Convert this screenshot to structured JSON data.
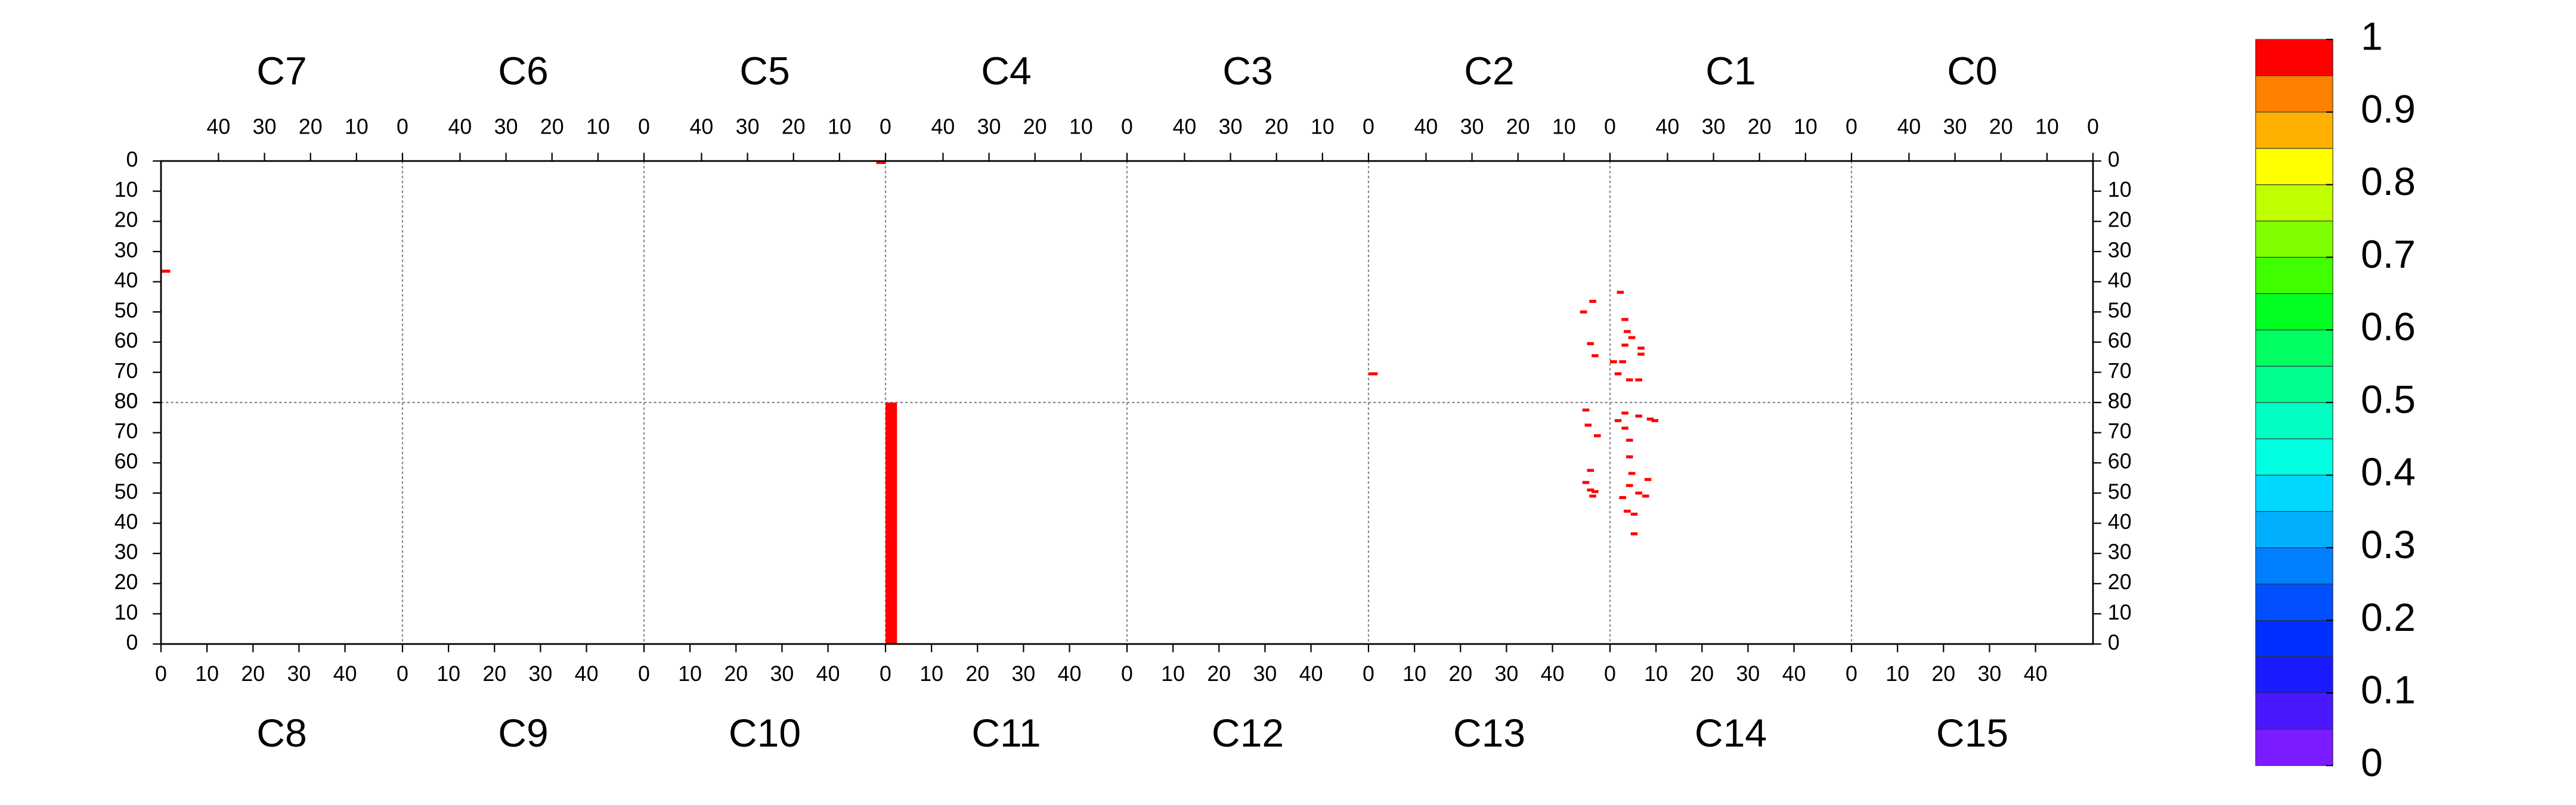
{
  "chart_data": {
    "type": "heatmap",
    "xlim": [
      0,
      52.5
    ],
    "ylim": [
      0,
      80
    ],
    "xticks": [
      0,
      10,
      20,
      30,
      40
    ],
    "yticks": [
      0,
      10,
      20,
      30,
      40,
      50,
      60,
      70,
      80
    ],
    "grid": true,
    "colorbar": {
      "lim": [
        0,
        1
      ],
      "ticks": [
        0,
        0.1,
        0.2,
        0.3,
        0.4,
        0.5,
        0.6,
        0.7,
        0.8,
        0.9,
        1
      ],
      "colors": [
        "#7a1cff",
        "#4a18ff",
        "#1a1aff",
        "#0030ff",
        "#0050ff",
        "#0080ff",
        "#00b0ff",
        "#00d8ff",
        "#00ffe0",
        "#00ffc0",
        "#00ff90",
        "#00ff60",
        "#00ff20",
        "#40ff00",
        "#80ff00",
        "#c0ff00",
        "#ffff00",
        "#ffb000",
        "#ff8000",
        "#ff0000"
      ]
    },
    "panels": [
      {
        "label": "C7",
        "row": "top",
        "hits": [
          {
            "x": [
              50.5,
              52.5
            ],
            "y": [
              36,
              37
            ],
            "value": 1
          }
        ]
      },
      {
        "label": "C6",
        "row": "top",
        "hits": []
      },
      {
        "label": "C5",
        "row": "top",
        "hits": [
          {
            "x": [
              0,
              2
            ],
            "y": [
              0,
              1
            ],
            "value": 1
          }
        ]
      },
      {
        "label": "C4",
        "row": "top",
        "hits": []
      },
      {
        "label": "C3",
        "row": "top",
        "hits": []
      },
      {
        "label": "C2",
        "row": "top",
        "hits": [
          {
            "x": [
              50.5,
              52.5
            ],
            "y": [
              70,
              71
            ],
            "value": 1
          },
          {
            "x": [
              3,
              4.5
            ],
            "y": [
              46,
              47
            ],
            "value": 1
          },
          {
            "x": [
              5,
              6.5
            ],
            "y": [
              49.5,
              50.5
            ],
            "value": 1
          },
          {
            "x": [
              3.5,
              5
            ],
            "y": [
              60,
              61
            ],
            "value": 1
          },
          {
            "x": [
              2.5,
              4
            ],
            "y": [
              64,
              65
            ],
            "value": 1
          }
        ]
      },
      {
        "label": "C1",
        "row": "top",
        "hits": [
          {
            "x": [
              49.5,
              51
            ],
            "y": [
              43,
              44
            ],
            "value": 1
          },
          {
            "x": [
              48.5,
              50
            ],
            "y": [
              52,
              53
            ],
            "value": 1
          },
          {
            "x": [
              48,
              49.5
            ],
            "y": [
              56,
              57
            ],
            "value": 1
          },
          {
            "x": [
              47,
              48.5
            ],
            "y": [
              58,
              59
            ],
            "value": 1
          },
          {
            "x": [
              48.5,
              50
            ],
            "y": [
              60.5,
              61.5
            ],
            "value": 1
          },
          {
            "x": [
              45,
              46.5
            ],
            "y": [
              61.5,
              62.5
            ],
            "value": 1
          },
          {
            "x": [
              49,
              50.5
            ],
            "y": [
              66,
              67
            ],
            "value": 1
          },
          {
            "x": [
              51,
              52.5
            ],
            "y": [
              66,
              67
            ],
            "value": 1
          },
          {
            "x": [
              50,
              51.5
            ],
            "y": [
              70,
              71
            ],
            "value": 1
          },
          {
            "x": [
              47.5,
              49
            ],
            "y": [
              72,
              73
            ],
            "value": 1
          },
          {
            "x": [
              45.5,
              47
            ],
            "y": [
              72,
              73
            ],
            "value": 1
          },
          {
            "x": [
              45,
              46.5
            ],
            "y": [
              63.5,
              64.5
            ],
            "value": 1
          }
        ]
      },
      {
        "label": "C0",
        "row": "top",
        "hits": []
      },
      {
        "label": "C8",
        "row": "bottom",
        "hits": []
      },
      {
        "label": "C9",
        "row": "bottom",
        "hits": []
      },
      {
        "label": "C10",
        "row": "bottom",
        "hits": []
      },
      {
        "label": "C11",
        "row": "bottom",
        "hits": [
          {
            "x": [
              0,
              2.5
            ],
            "y": [
              0,
              80
            ],
            "value": 1
          }
        ]
      },
      {
        "label": "C12",
        "row": "bottom",
        "hits": []
      },
      {
        "label": "C13",
        "row": "bottom",
        "hits": [
          {
            "x": [
              46.5,
              48
            ],
            "y": [
              77,
              78
            ],
            "value": 1
          },
          {
            "x": [
              47,
              48.5
            ],
            "y": [
              72,
              73
            ],
            "value": 1
          },
          {
            "x": [
              49,
              50.5
            ],
            "y": [
              68.5,
              69.5
            ],
            "value": 1
          },
          {
            "x": [
              47.5,
              49
            ],
            "y": [
              57,
              58
            ],
            "value": 1
          },
          {
            "x": [
              46.5,
              48
            ],
            "y": [
              53,
              54
            ],
            "value": 1
          },
          {
            "x": [
              47.5,
              49
            ],
            "y": [
              50.5,
              51.5
            ],
            "value": 1
          },
          {
            "x": [
              48,
              49.5
            ],
            "y": [
              48.5,
              49.5
            ],
            "value": 1
          },
          {
            "x": [
              48.5,
              50
            ],
            "y": [
              50,
              51
            ],
            "value": 1
          }
        ]
      },
      {
        "label": "C14",
        "row": "bottom",
        "hits": [
          {
            "x": [
              1,
              2.5
            ],
            "y": [
              73.5,
              74.5
            ],
            "value": 1
          },
          {
            "x": [
              2.5,
              4
            ],
            "y": [
              76,
              77
            ],
            "value": 1
          },
          {
            "x": [
              5.5,
              7
            ],
            "y": [
              75,
              76
            ],
            "value": 1
          },
          {
            "x": [
              8,
              9.5
            ],
            "y": [
              74,
              75
            ],
            "value": 1
          },
          {
            "x": [
              9,
              10.5
            ],
            "y": [
              73.5,
              74.5
            ],
            "value": 1
          },
          {
            "x": [
              3.5,
              5
            ],
            "y": [
              67,
              68
            ],
            "value": 1
          },
          {
            "x": [
              3.5,
              5
            ],
            "y": [
              61.5,
              62.5
            ],
            "value": 1
          },
          {
            "x": [
              4,
              5.5
            ],
            "y": [
              56,
              57
            ],
            "value": 1
          },
          {
            "x": [
              3.5,
              5
            ],
            "y": [
              52,
              53
            ],
            "value": 1
          },
          {
            "x": [
              5.5,
              7
            ],
            "y": [
              49.5,
              50.5
            ],
            "value": 1
          },
          {
            "x": [
              7.5,
              9
            ],
            "y": [
              54,
              55
            ],
            "value": 1
          },
          {
            "x": [
              7,
              8.5
            ],
            "y": [
              48.5,
              49.5
            ],
            "value": 1
          },
          {
            "x": [
              2,
              3.5
            ],
            "y": [
              48,
              49
            ],
            "value": 1
          },
          {
            "x": [
              3,
              4.5
            ],
            "y": [
              43.5,
              44.5
            ],
            "value": 1
          },
          {
            "x": [
              4.5,
              6
            ],
            "y": [
              42.5,
              43.5
            ],
            "value": 1
          },
          {
            "x": [
              4.5,
              6
            ],
            "y": [
              36,
              37
            ],
            "value": 1
          },
          {
            "x": [
              2.5,
              4
            ],
            "y": [
              71,
              72
            ],
            "value": 1
          }
        ]
      },
      {
        "label": "C15",
        "row": "bottom",
        "hits": []
      }
    ]
  }
}
